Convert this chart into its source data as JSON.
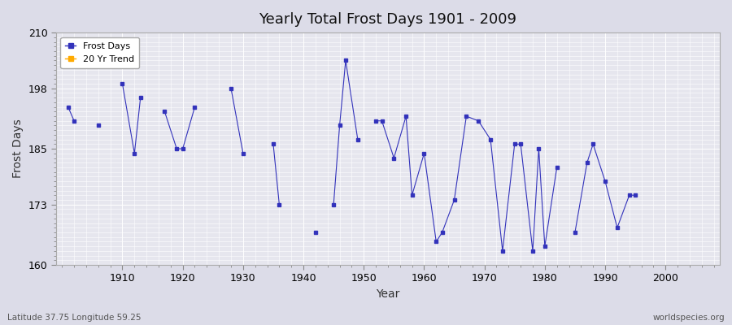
{
  "title": "Yearly Total Frost Days 1901 - 2009",
  "xlabel": "Year",
  "ylabel": "Frost Days",
  "subtitle": "Latitude 37.75 Longitude 59.25",
  "watermark": "worldspecies.org",
  "legend_labels": [
    "Frost Days",
    "20 Yr Trend"
  ],
  "legend_colors": [
    "#3333bb",
    "#ffaa00"
  ],
  "line_color": "#3333bb",
  "bg_color": "#e6e6ee",
  "fig_color": "#dcdce8",
  "grid_color": "#ffffff",
  "ylim": [
    160,
    210
  ],
  "yticks": [
    160,
    173,
    185,
    198,
    210
  ],
  "xlim": [
    1899,
    2009
  ],
  "xticks": [
    1910,
    1920,
    1930,
    1940,
    1950,
    1960,
    1970,
    1980,
    1990,
    2000
  ],
  "years": [
    1901,
    1902,
    1906,
    1910,
    1912,
    1913,
    1917,
    1919,
    1920,
    1922,
    1928,
    1930,
    1935,
    1936,
    1942,
    1945,
    1946,
    1947,
    1949,
    1952,
    1953,
    1955,
    1957,
    1958,
    1960,
    1962,
    1963,
    1965,
    1967,
    1969,
    1971,
    1973,
    1975,
    1976,
    1978,
    1979,
    1980,
    1982,
    1985,
    1987,
    1988,
    1990,
    1992,
    1994,
    1995
  ],
  "frost_days": [
    194,
    191,
    190,
    199,
    184,
    196,
    193,
    185,
    185,
    194,
    198,
    184,
    186,
    173,
    167,
    173,
    190,
    204,
    187,
    191,
    191,
    183,
    192,
    175,
    184,
    165,
    167,
    174,
    192,
    191,
    187,
    163,
    186,
    186,
    163,
    185,
    164,
    181,
    167,
    182,
    186,
    178,
    168,
    175,
    175
  ]
}
